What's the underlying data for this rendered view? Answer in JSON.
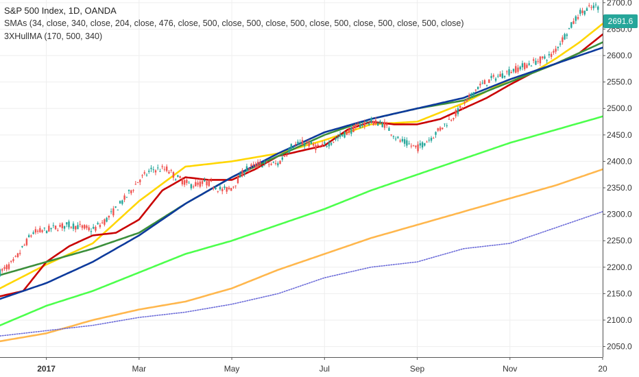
{
  "header": {
    "title": "S&P 500 Index, 1D, OANDA",
    "indicator_sma": "SMAs (34, close, 340, close, 204, close, 476, close, 500, close, 500, close, 500, close, 500, close, 500, close, 500, close)",
    "indicator_hull": "3XHullMA (170, 500, 340)"
  },
  "last_price": {
    "value": "2691.6",
    "color": "#26a69a"
  },
  "colors": {
    "up": "#26a69a",
    "down": "#ef5350",
    "grid": "#eeeeee",
    "axis": "#555555",
    "yellow": "#ffd600",
    "red": "#c90000",
    "darkgreen": "#3b8f3b",
    "navy": "#0d3a9c",
    "lime": "#4cff4c",
    "orange": "#ffb74d",
    "purple": "#6a6ad8"
  },
  "chart_data": {
    "type": "line",
    "title": "S&P 500 Index, 1D, OANDA",
    "x_labels": [
      "2017",
      "Mar",
      "May",
      "Jul",
      "Sep",
      "Nov",
      "20"
    ],
    "y_ticks": [
      2050,
      2100,
      2150,
      2200,
      2250,
      2300,
      2350,
      2400,
      2450,
      2500,
      2550,
      2600,
      2650,
      2700
    ],
    "ylim": [
      2030,
      2705
    ],
    "x_domain_months": [
      0,
      13
    ],
    "grid": true,
    "price": {
      "name": "S&P 500 Index",
      "x": [
        0,
        0.3,
        0.7,
        1.0,
        1.2,
        1.5,
        1.8,
        2.0,
        2.3,
        2.7,
        3.0,
        3.3,
        3.6,
        3.8,
        4.1,
        4.5,
        4.8,
        5.0,
        5.3,
        5.6,
        6.0,
        6.3,
        6.6,
        6.9,
        7.2,
        7.5,
        7.8,
        8.0,
        8.3,
        8.6,
        9.0,
        9.3,
        9.6,
        10.0,
        10.3,
        10.6,
        11.0,
        11.3,
        11.6,
        11.9,
        12.2,
        12.5,
        12.8
      ],
      "y": [
        2190,
        2210,
        2265,
        2270,
        2275,
        2280,
        2275,
        2270,
        2290,
        2330,
        2365,
        2385,
        2385,
        2370,
        2355,
        2360,
        2345,
        2350,
        2385,
        2395,
        2395,
        2430,
        2435,
        2425,
        2440,
        2455,
        2470,
        2475,
        2470,
        2440,
        2425,
        2445,
        2470,
        2505,
        2540,
        2555,
        2570,
        2580,
        2590,
        2600,
        2640,
        2680,
        2692
      ]
    },
    "series": [
      {
        "name": "SMA 34",
        "color": "#ffd600",
        "x": [
          0,
          1,
          2,
          3,
          4,
          5,
          6,
          7,
          8,
          9,
          10,
          11,
          11.5,
          12,
          12.5,
          13
        ],
        "y": [
          2160,
          2205,
          2245,
          2325,
          2390,
          2400,
          2415,
          2440,
          2470,
          2475,
          2510,
          2555,
          2568,
          2595,
          2625,
          2660
        ]
      },
      {
        "name": "HullMA",
        "color": "#c90000",
        "x": [
          0,
          0.5,
          1,
          1.5,
          2,
          2.5,
          3,
          3.5,
          4,
          4.5,
          5,
          5.5,
          6,
          6.5,
          7,
          7.5,
          8,
          8.5,
          9,
          9.5,
          10,
          10.5,
          11,
          11.5,
          12,
          12.5,
          13
        ],
        "y": [
          2145,
          2155,
          2210,
          2240,
          2260,
          2265,
          2290,
          2345,
          2370,
          2365,
          2365,
          2385,
          2410,
          2420,
          2430,
          2460,
          2475,
          2470,
          2470,
          2480,
          2500,
          2520,
          2545,
          2568,
          2585,
          2605,
          2640
        ]
      },
      {
        "name": "SMA 204",
        "color": "#3b8f3b",
        "x": [
          0,
          1,
          2,
          3,
          4,
          5,
          6,
          7,
          8,
          9,
          10,
          11,
          12,
          13
        ],
        "y": [
          2185,
          2210,
          2235,
          2265,
          2320,
          2370,
          2410,
          2450,
          2480,
          2500,
          2515,
          2550,
          2585,
          2625
        ]
      },
      {
        "name": "SMA 340",
        "color": "#0d3a9c",
        "x": [
          0,
          1,
          2,
          3,
          4,
          5,
          6,
          7,
          8,
          9,
          10,
          11,
          12,
          13
        ],
        "y": [
          2140,
          2170,
          2210,
          2260,
          2320,
          2370,
          2415,
          2455,
          2480,
          2500,
          2520,
          2555,
          2585,
          2615
        ]
      },
      {
        "name": "SMA 476",
        "color": "#4cff4c",
        "x": [
          0,
          1,
          2,
          3,
          4,
          5,
          6,
          7,
          8,
          9,
          10,
          11,
          12,
          13
        ],
        "y": [
          2090,
          2127,
          2155,
          2190,
          2225,
          2250,
          2280,
          2310,
          2345,
          2375,
          2405,
          2435,
          2460,
          2485
        ]
      },
      {
        "name": "SMA 500",
        "color": "#ffb74d",
        "x": [
          0,
          1,
          2,
          3,
          4,
          5,
          6,
          7,
          8,
          9,
          10,
          11,
          12,
          13
        ],
        "y": [
          2060,
          2075,
          2100,
          2120,
          2135,
          2160,
          2195,
          2225,
          2255,
          2280,
          2305,
          2330,
          2355,
          2385
        ]
      },
      {
        "name": "SMA 500 (dotted)",
        "color": "#6a6ad8",
        "dotted": true,
        "x": [
          0,
          1,
          2,
          3,
          4,
          5,
          6,
          7,
          8,
          9,
          10,
          11,
          12,
          13
        ],
        "y": [
          2070,
          2080,
          2090,
          2105,
          2115,
          2130,
          2150,
          2180,
          2200,
          2210,
          2235,
          2245,
          2275,
          2305
        ]
      }
    ]
  }
}
